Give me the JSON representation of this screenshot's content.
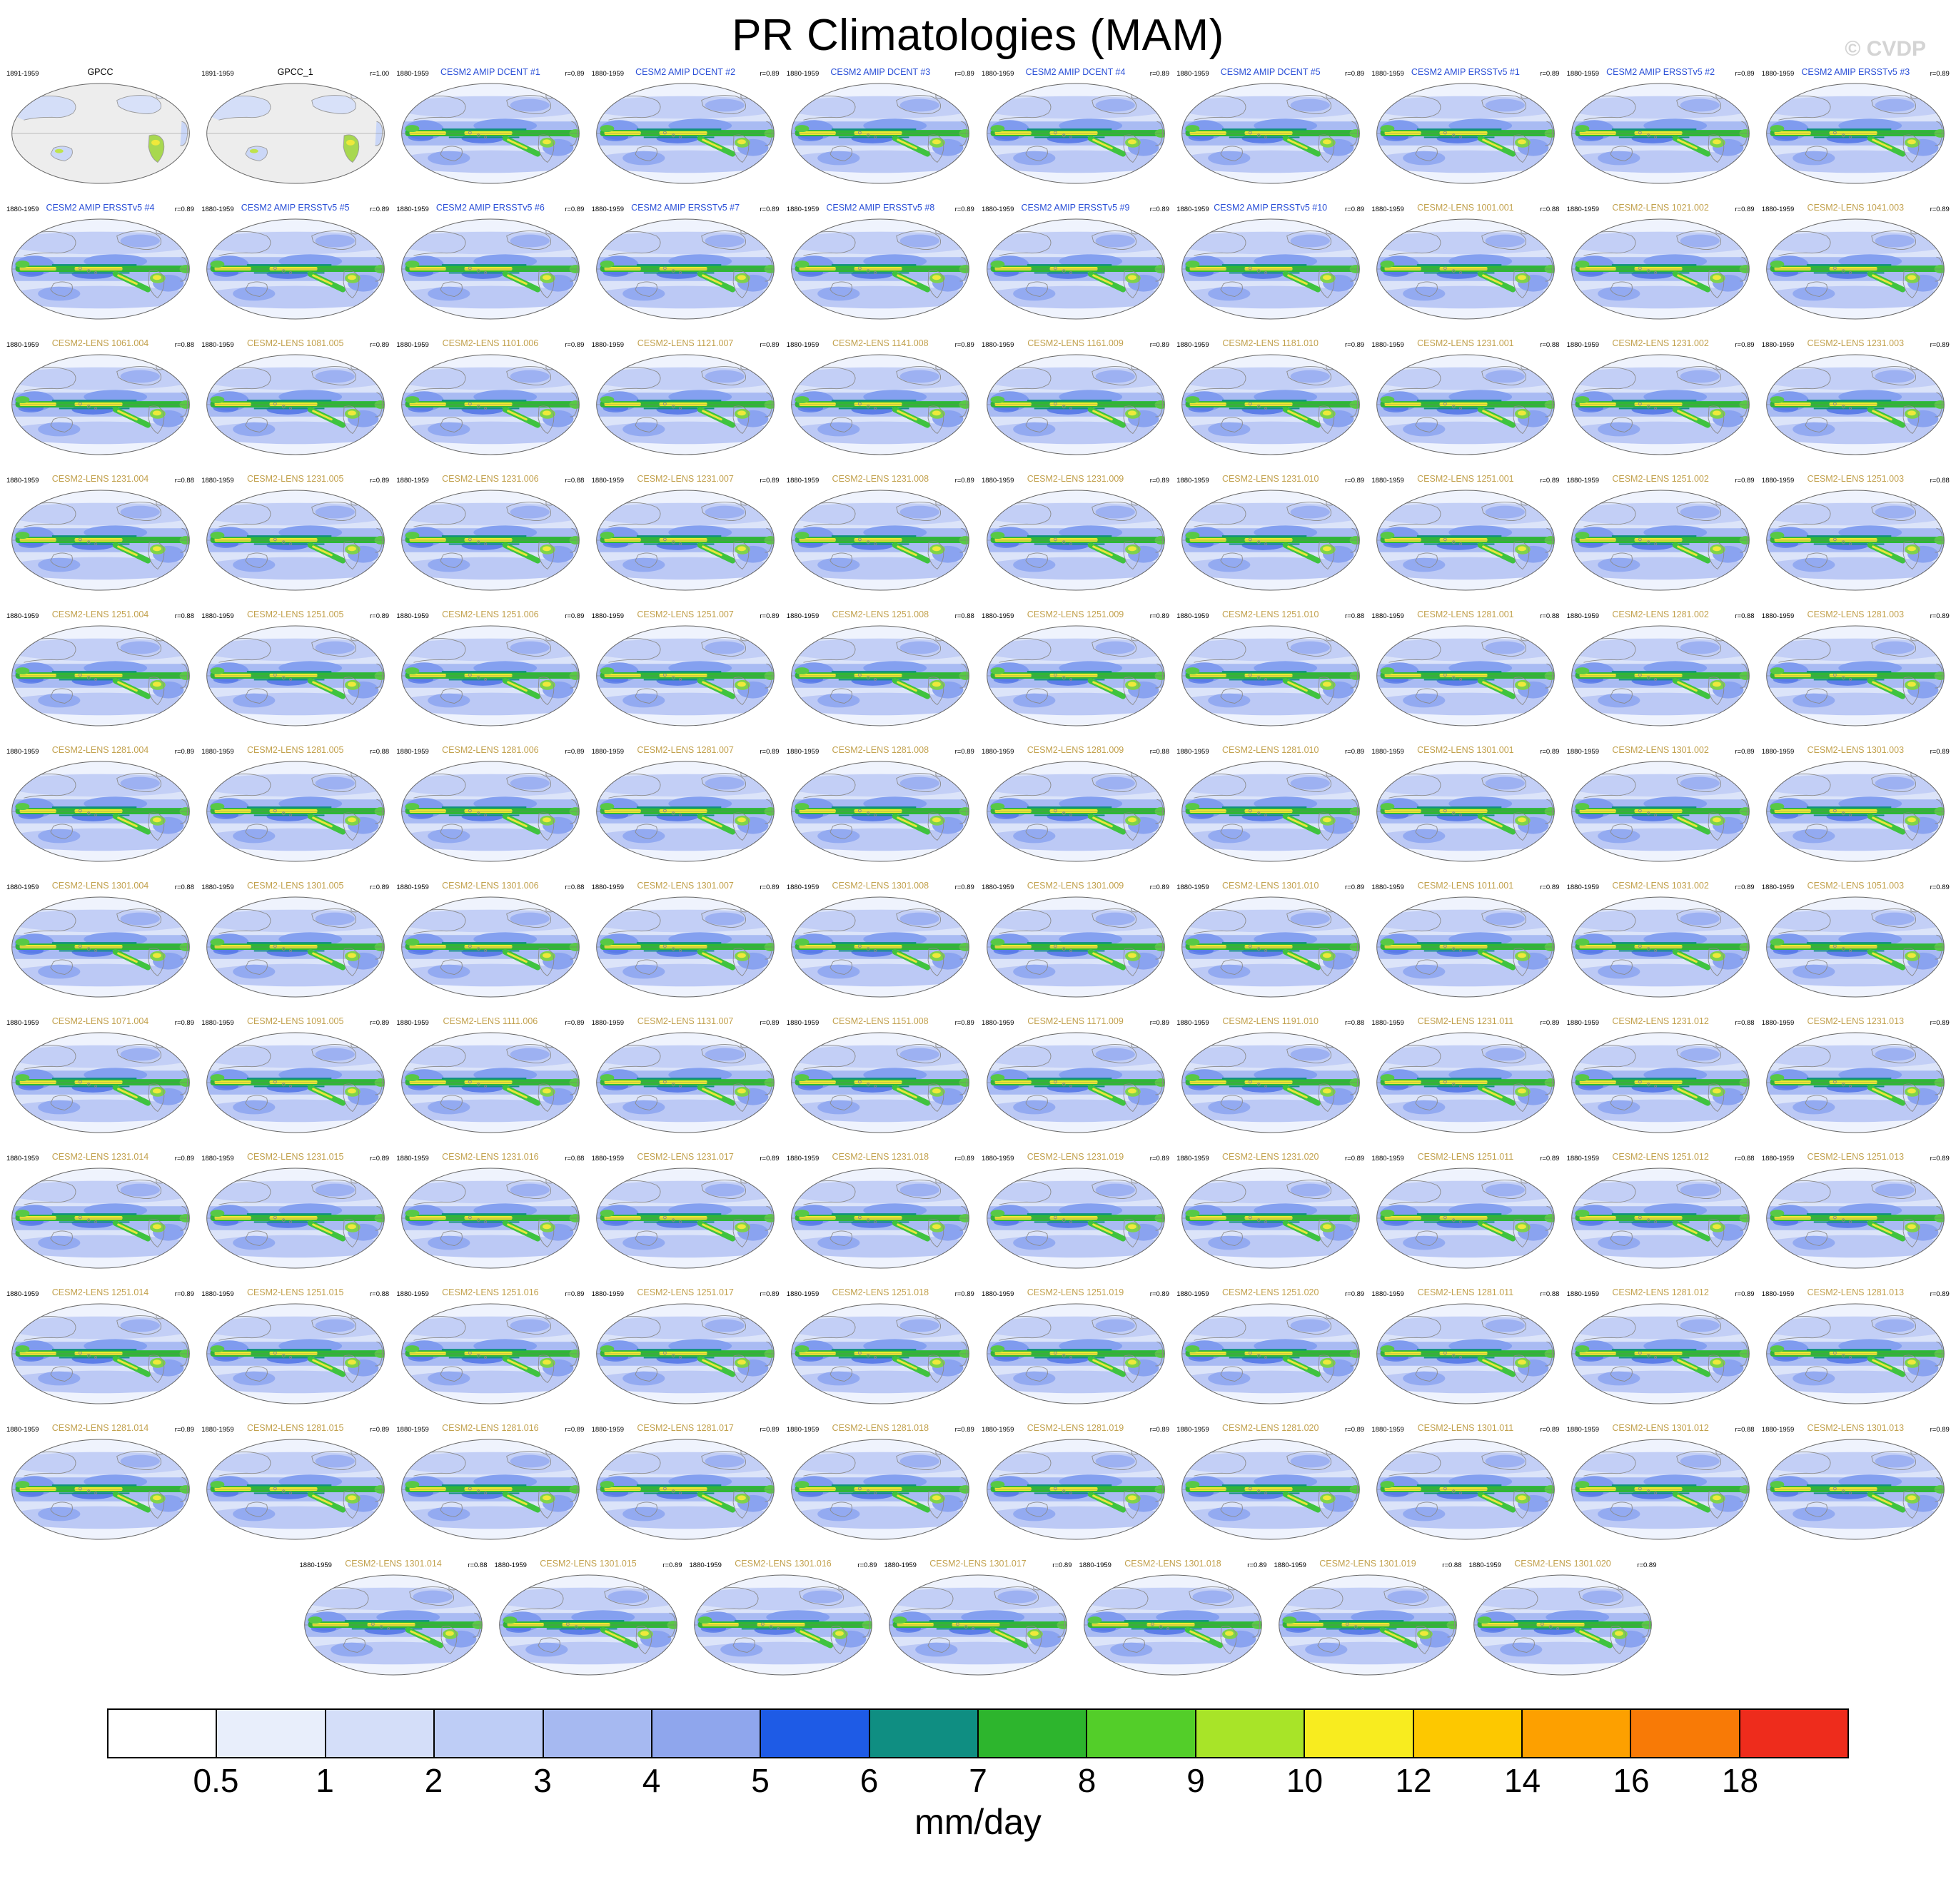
{
  "header": {
    "title": "PR Climatologies (MAM)",
    "watermark": "© CVDP"
  },
  "title_colors": {
    "obs": "#000000",
    "amip": "#2A4FD7",
    "lens": "#C2A14D"
  },
  "chart_data": {
    "type": "heatmap",
    "title": "PR Climatologies (MAM)",
    "subtitle": "Multi-panel global precipitation climatology maps (Robinson projection), observations vs CESM2 ensembles",
    "units": "mm/day",
    "variable": "PR",
    "season": "MAM",
    "levels": [
      0.5,
      1,
      2,
      3,
      4,
      5,
      6,
      7,
      8,
      9,
      10,
      12,
      14,
      16,
      18
    ],
    "palette": [
      "#FFFFFF",
      "#E8EEFB",
      "#D4DEF9",
      "#BECDF6",
      "#A6B9F1",
      "#8FA6ED",
      "#1E5BE6",
      "#0F8E82",
      "#2DB52D",
      "#53CE29",
      "#A8E428",
      "#F8EC1F",
      "#FDC800",
      "#FDA000",
      "#F87A06",
      "#EE2C1C"
    ],
    "legend_position": "bottom",
    "grid": "off",
    "panels": [
      {
        "title": "GPCC",
        "group": "obs",
        "period": "1891-1959",
        "r": ""
      },
      {
        "title": "GPCC_1",
        "group": "obs",
        "period": "1891-1959",
        "r": "r=1.00"
      },
      {
        "title": "CESM2 AMIP DCENT #1",
        "group": "amip",
        "period": "1880-1959",
        "r": "r=0.89"
      },
      {
        "title": "CESM2 AMIP DCENT #2",
        "group": "amip",
        "period": "1880-1959",
        "r": "r=0.89"
      },
      {
        "title": "CESM2 AMIP DCENT #3",
        "group": "amip",
        "period": "1880-1959",
        "r": "r=0.89"
      },
      {
        "title": "CESM2 AMIP DCENT #4",
        "group": "amip",
        "period": "1880-1959",
        "r": "r=0.89"
      },
      {
        "title": "CESM2 AMIP DCENT #5",
        "group": "amip",
        "period": "1880-1959",
        "r": "r=0.89"
      },
      {
        "title": "CESM2 AMIP ERSSTv5 #1",
        "group": "amip",
        "period": "1880-1959",
        "r": "r=0.89"
      },
      {
        "title": "CESM2 AMIP ERSSTv5 #2",
        "group": "amip",
        "period": "1880-1959",
        "r": "r=0.89"
      },
      {
        "title": "CESM2 AMIP ERSSTv5 #3",
        "group": "amip",
        "period": "1880-1959",
        "r": "r=0.89"
      },
      {
        "title": "CESM2 AMIP ERSSTv5 #4",
        "group": "amip",
        "period": "1880-1959",
        "r": "r=0.89"
      },
      {
        "title": "CESM2 AMIP ERSSTv5 #5",
        "group": "amip",
        "period": "1880-1959",
        "r": "r=0.89"
      },
      {
        "title": "CESM2 AMIP ERSSTv5 #6",
        "group": "amip",
        "period": "1880-1959",
        "r": "r=0.89"
      },
      {
        "title": "CESM2 AMIP ERSSTv5 #7",
        "group": "amip",
        "period": "1880-1959",
        "r": "r=0.89"
      },
      {
        "title": "CESM2 AMIP ERSSTv5 #8",
        "group": "amip",
        "period": "1880-1959",
        "r": "r=0.89"
      },
      {
        "title": "CESM2 AMIP ERSSTv5 #9",
        "group": "amip",
        "period": "1880-1959",
        "r": "r=0.89"
      },
      {
        "title": "CESM2 AMIP ERSSTv5 #10",
        "group": "amip",
        "period": "1880-1959",
        "r": "r=0.89"
      },
      {
        "title": "CESM2-LENS 1001.001",
        "group": "lens",
        "period": "1880-1959",
        "r": "r=0.88"
      },
      {
        "title": "CESM2-LENS 1021.002",
        "group": "lens",
        "period": "1880-1959",
        "r": "r=0.89"
      },
      {
        "title": "CESM2-LENS 1041.003",
        "group": "lens",
        "period": "1880-1959",
        "r": "r=0.89"
      },
      {
        "title": "CESM2-LENS 1061.004",
        "group": "lens",
        "period": "1880-1959",
        "r": "r=0.88"
      },
      {
        "title": "CESM2-LENS 1081.005",
        "group": "lens",
        "period": "1880-1959",
        "r": "r=0.89"
      },
      {
        "title": "CESM2-LENS 1101.006",
        "group": "lens",
        "period": "1880-1959",
        "r": "r=0.89"
      },
      {
        "title": "CESM2-LENS 1121.007",
        "group": "lens",
        "period": "1880-1959",
        "r": "r=0.89"
      },
      {
        "title": "CESM2-LENS 1141.008",
        "group": "lens",
        "period": "1880-1959",
        "r": "r=0.89"
      },
      {
        "title": "CESM2-LENS 1161.009",
        "group": "lens",
        "period": "1880-1959",
        "r": "r=0.89"
      },
      {
        "title": "CESM2-LENS 1181.010",
        "group": "lens",
        "period": "1880-1959",
        "r": "r=0.89"
      },
      {
        "title": "CESM2-LENS 1231.001",
        "group": "lens",
        "period": "1880-1959",
        "r": "r=0.88"
      },
      {
        "title": "CESM2-LENS 1231.002",
        "group": "lens",
        "period": "1880-1959",
        "r": "r=0.89"
      },
      {
        "title": "CESM2-LENS 1231.003",
        "group": "lens",
        "period": "1880-1959",
        "r": "r=0.89"
      },
      {
        "title": "CESM2-LENS 1231.004",
        "group": "lens",
        "period": "1880-1959",
        "r": "r=0.88"
      },
      {
        "title": "CESM2-LENS 1231.005",
        "group": "lens",
        "period": "1880-1959",
        "r": "r=0.89"
      },
      {
        "title": "CESM2-LENS 1231.006",
        "group": "lens",
        "period": "1880-1959",
        "r": "r=0.88"
      },
      {
        "title": "CESM2-LENS 1231.007",
        "group": "lens",
        "period": "1880-1959",
        "r": "r=0.89"
      },
      {
        "title": "CESM2-LENS 1231.008",
        "group": "lens",
        "period": "1880-1959",
        "r": "r=0.89"
      },
      {
        "title": "CESM2-LENS 1231.009",
        "group": "lens",
        "period": "1880-1959",
        "r": "r=0.89"
      },
      {
        "title": "CESM2-LENS 1231.010",
        "group": "lens",
        "period": "1880-1959",
        "r": "r=0.89"
      },
      {
        "title": "CESM2-LENS 1251.001",
        "group": "lens",
        "period": "1880-1959",
        "r": "r=0.89"
      },
      {
        "title": "CESM2-LENS 1251.002",
        "group": "lens",
        "period": "1880-1959",
        "r": "r=0.89"
      },
      {
        "title": "CESM2-LENS 1251.003",
        "group": "lens",
        "period": "1880-1959",
        "r": "r=0.88"
      },
      {
        "title": "CESM2-LENS 1251.004",
        "group": "lens",
        "period": "1880-1959",
        "r": "r=0.88"
      },
      {
        "title": "CESM2-LENS 1251.005",
        "group": "lens",
        "period": "1880-1959",
        "r": "r=0.89"
      },
      {
        "title": "CESM2-LENS 1251.006",
        "group": "lens",
        "period": "1880-1959",
        "r": "r=0.89"
      },
      {
        "title": "CESM2-LENS 1251.007",
        "group": "lens",
        "period": "1880-1959",
        "r": "r=0.89"
      },
      {
        "title": "CESM2-LENS 1251.008",
        "group": "lens",
        "period": "1880-1959",
        "r": "r=0.88"
      },
      {
        "title": "CESM2-LENS 1251.009",
        "group": "lens",
        "period": "1880-1959",
        "r": "r=0.89"
      },
      {
        "title": "CESM2-LENS 1251.010",
        "group": "lens",
        "period": "1880-1959",
        "r": "r=0.88"
      },
      {
        "title": "CESM2-LENS 1281.001",
        "group": "lens",
        "period": "1880-1959",
        "r": "r=0.88"
      },
      {
        "title": "CESM2-LENS 1281.002",
        "group": "lens",
        "period": "1880-1959",
        "r": "r=0.88"
      },
      {
        "title": "CESM2-LENS 1281.003",
        "group": "lens",
        "period": "1880-1959",
        "r": "r=0.89"
      },
      {
        "title": "CESM2-LENS 1281.004",
        "group": "lens",
        "period": "1880-1959",
        "r": "r=0.89"
      },
      {
        "title": "CESM2-LENS 1281.005",
        "group": "lens",
        "period": "1880-1959",
        "r": "r=0.88"
      },
      {
        "title": "CESM2-LENS 1281.006",
        "group": "lens",
        "period": "1880-1959",
        "r": "r=0.89"
      },
      {
        "title": "CESM2-LENS 1281.007",
        "group": "lens",
        "period": "1880-1959",
        "r": "r=0.89"
      },
      {
        "title": "CESM2-LENS 1281.008",
        "group": "lens",
        "period": "1880-1959",
        "r": "r=0.89"
      },
      {
        "title": "CESM2-LENS 1281.009",
        "group": "lens",
        "period": "1880-1959",
        "r": "r=0.88"
      },
      {
        "title": "CESM2-LENS 1281.010",
        "group": "lens",
        "period": "1880-1959",
        "r": "r=0.89"
      },
      {
        "title": "CESM2-LENS 1301.001",
        "group": "lens",
        "period": "1880-1959",
        "r": "r=0.89"
      },
      {
        "title": "CESM2-LENS 1301.002",
        "group": "lens",
        "period": "1880-1959",
        "r": "r=0.89"
      },
      {
        "title": "CESM2-LENS 1301.003",
        "group": "lens",
        "period": "1880-1959",
        "r": "r=0.89"
      },
      {
        "title": "CESM2-LENS 1301.004",
        "group": "lens",
        "period": "1880-1959",
        "r": "r=0.88"
      },
      {
        "title": "CESM2-LENS 1301.005",
        "group": "lens",
        "period": "1880-1959",
        "r": "r=0.89"
      },
      {
        "title": "CESM2-LENS 1301.006",
        "group": "lens",
        "period": "1880-1959",
        "r": "r=0.88"
      },
      {
        "title": "CESM2-LENS 1301.007",
        "group": "lens",
        "period": "1880-1959",
        "r": "r=0.89"
      },
      {
        "title": "CESM2-LENS 1301.008",
        "group": "lens",
        "period": "1880-1959",
        "r": "r=0.89"
      },
      {
        "title": "CESM2-LENS 1301.009",
        "group": "lens",
        "period": "1880-1959",
        "r": "r=0.89"
      },
      {
        "title": "CESM2-LENS 1301.010",
        "group": "lens",
        "period": "1880-1959",
        "r": "r=0.89"
      },
      {
        "title": "CESM2-LENS 1011.001",
        "group": "lens",
        "period": "1880-1959",
        "r": "r=0.89"
      },
      {
        "title": "CESM2-LENS 1031.002",
        "group": "lens",
        "period": "1880-1959",
        "r": "r=0.89"
      },
      {
        "title": "CESM2-LENS 1051.003",
        "group": "lens",
        "period": "1880-1959",
        "r": "r=0.89"
      },
      {
        "title": "CESM2-LENS 1071.004",
        "group": "lens",
        "period": "1880-1959",
        "r": "r=0.89"
      },
      {
        "title": "CESM2-LENS 1091.005",
        "group": "lens",
        "period": "1880-1959",
        "r": "r=0.89"
      },
      {
        "title": "CESM2-LENS 1111.006",
        "group": "lens",
        "period": "1880-1959",
        "r": "r=0.89"
      },
      {
        "title": "CESM2-LENS 1131.007",
        "group": "lens",
        "period": "1880-1959",
        "r": "r=0.89"
      },
      {
        "title": "CESM2-LENS 1151.008",
        "group": "lens",
        "period": "1880-1959",
        "r": "r=0.89"
      },
      {
        "title": "CESM2-LENS 1171.009",
        "group": "lens",
        "period": "1880-1959",
        "r": "r=0.89"
      },
      {
        "title": "CESM2-LENS 1191.010",
        "group": "lens",
        "period": "1880-1959",
        "r": "r=0.88"
      },
      {
        "title": "CESM2-LENS 1231.011",
        "group": "lens",
        "period": "1880-1959",
        "r": "r=0.89"
      },
      {
        "title": "CESM2-LENS 1231.012",
        "group": "lens",
        "period": "1880-1959",
        "r": "r=0.88"
      },
      {
        "title": "CESM2-LENS 1231.013",
        "group": "lens",
        "period": "1880-1959",
        "r": "r=0.89"
      },
      {
        "title": "CESM2-LENS 1231.014",
        "group": "lens",
        "period": "1880-1959",
        "r": "r=0.89"
      },
      {
        "title": "CESM2-LENS 1231.015",
        "group": "lens",
        "period": "1880-1959",
        "r": "r=0.89"
      },
      {
        "title": "CESM2-LENS 1231.016",
        "group": "lens",
        "period": "1880-1959",
        "r": "r=0.88"
      },
      {
        "title": "CESM2-LENS 1231.017",
        "group": "lens",
        "period": "1880-1959",
        "r": "r=0.89"
      },
      {
        "title": "CESM2-LENS 1231.018",
        "group": "lens",
        "period": "1880-1959",
        "r": "r=0.89"
      },
      {
        "title": "CESM2-LENS 1231.019",
        "group": "lens",
        "period": "1880-1959",
        "r": "r=0.89"
      },
      {
        "title": "CESM2-LENS 1231.020",
        "group": "lens",
        "period": "1880-1959",
        "r": "r=0.89"
      },
      {
        "title": "CESM2-LENS 1251.011",
        "group": "lens",
        "period": "1880-1959",
        "r": "r=0.89"
      },
      {
        "title": "CESM2-LENS 1251.012",
        "group": "lens",
        "period": "1880-1959",
        "r": "r=0.88"
      },
      {
        "title": "CESM2-LENS 1251.013",
        "group": "lens",
        "period": "1880-1959",
        "r": "r=0.89"
      },
      {
        "title": "CESM2-LENS 1251.014",
        "group": "lens",
        "period": "1880-1959",
        "r": "r=0.89"
      },
      {
        "title": "CESM2-LENS 1251.015",
        "group": "lens",
        "period": "1880-1959",
        "r": "r=0.88"
      },
      {
        "title": "CESM2-LENS 1251.016",
        "group": "lens",
        "period": "1880-1959",
        "r": "r=0.89"
      },
      {
        "title": "CESM2-LENS 1251.017",
        "group": "lens",
        "period": "1880-1959",
        "r": "r=0.89"
      },
      {
        "title": "CESM2-LENS 1251.018",
        "group": "lens",
        "period": "1880-1959",
        "r": "r=0.89"
      },
      {
        "title": "CESM2-LENS 1251.019",
        "group": "lens",
        "period": "1880-1959",
        "r": "r=0.89"
      },
      {
        "title": "CESM2-LENS 1251.020",
        "group": "lens",
        "period": "1880-1959",
        "r": "r=0.89"
      },
      {
        "title": "CESM2-LENS 1281.011",
        "group": "lens",
        "period": "1880-1959",
        "r": "r=0.88"
      },
      {
        "title": "CESM2-LENS 1281.012",
        "group": "lens",
        "period": "1880-1959",
        "r": "r=0.89"
      },
      {
        "title": "CESM2-LENS 1281.013",
        "group": "lens",
        "period": "1880-1959",
        "r": "r=0.89"
      },
      {
        "title": "CESM2-LENS 1281.014",
        "group": "lens",
        "period": "1880-1959",
        "r": "r=0.89"
      },
      {
        "title": "CESM2-LENS 1281.015",
        "group": "lens",
        "period": "1880-1959",
        "r": "r=0.89"
      },
      {
        "title": "CESM2-LENS 1281.016",
        "group": "lens",
        "period": "1880-1959",
        "r": "r=0.89"
      },
      {
        "title": "CESM2-LENS 1281.017",
        "group": "lens",
        "period": "1880-1959",
        "r": "r=0.89"
      },
      {
        "title": "CESM2-LENS 1281.018",
        "group": "lens",
        "period": "1880-1959",
        "r": "r=0.89"
      },
      {
        "title": "CESM2-LENS 1281.019",
        "group": "lens",
        "period": "1880-1959",
        "r": "r=0.89"
      },
      {
        "title": "CESM2-LENS 1281.020",
        "group": "lens",
        "period": "1880-1959",
        "r": "r=0.89"
      },
      {
        "title": "CESM2-LENS 1301.011",
        "group": "lens",
        "period": "1880-1959",
        "r": "r=0.89"
      },
      {
        "title": "CESM2-LENS 1301.012",
        "group": "lens",
        "period": "1880-1959",
        "r": "r=0.88"
      },
      {
        "title": "CESM2-LENS 1301.013",
        "group": "lens",
        "period": "1880-1959",
        "r": "r=0.89"
      },
      {
        "title": "CESM2-LENS 1301.014",
        "group": "lens",
        "period": "1880-1959",
        "r": "r=0.88"
      },
      {
        "title": "CESM2-LENS 1301.015",
        "group": "lens",
        "period": "1880-1959",
        "r": "r=0.89"
      },
      {
        "title": "CESM2-LENS 1301.016",
        "group": "lens",
        "period": "1880-1959",
        "r": "r=0.89"
      },
      {
        "title": "CESM2-LENS 1301.017",
        "group": "lens",
        "period": "1880-1959",
        "r": "r=0.89"
      },
      {
        "title": "CESM2-LENS 1301.018",
        "group": "lens",
        "period": "1880-1959",
        "r": "r=0.89"
      },
      {
        "title": "CESM2-LENS 1301.019",
        "group": "lens",
        "period": "1880-1959",
        "r": "r=0.88"
      },
      {
        "title": "CESM2-LENS 1301.020",
        "group": "lens",
        "period": "1880-1959",
        "r": "r=0.89"
      }
    ]
  }
}
